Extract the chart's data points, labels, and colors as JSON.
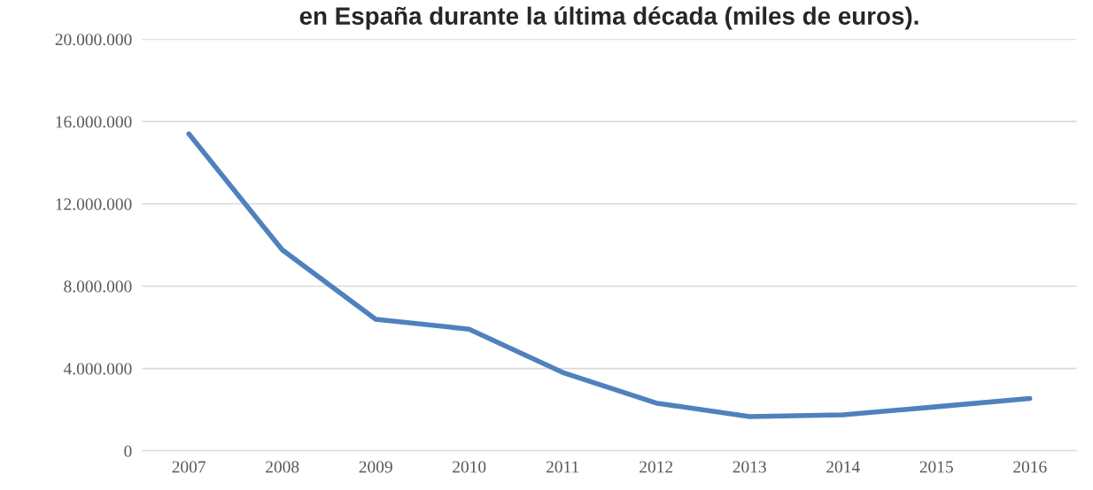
{
  "chart_data": {
    "type": "line",
    "title": "en España durante la última década (miles de euros).",
    "categories": [
      "2007",
      "2008",
      "2009",
      "2010",
      "2011",
      "2012",
      "2013",
      "2014",
      "2015",
      "2016"
    ],
    "series": [
      {
        "color": "#4f81bd",
        "values": [
          15400000,
          9760000,
          6390000,
          5910000,
          3810000,
          2320000,
          1660000,
          1750000,
          2140000,
          2540000
        ]
      }
    ],
    "ylim": [
      0,
      20000000
    ],
    "yticks": [
      {
        "value": 0,
        "label": "0"
      },
      {
        "value": 4000000,
        "label": "4.000.000"
      },
      {
        "value": 8000000,
        "label": "8.000.000"
      },
      {
        "value": 12000000,
        "label": "12.000.000"
      },
      {
        "value": 16000000,
        "label": "16.000.000"
      },
      {
        "value": 20000000,
        "label": "20.000.000"
      }
    ],
    "grid": "y",
    "marker": "none",
    "line_style": "solid"
  }
}
